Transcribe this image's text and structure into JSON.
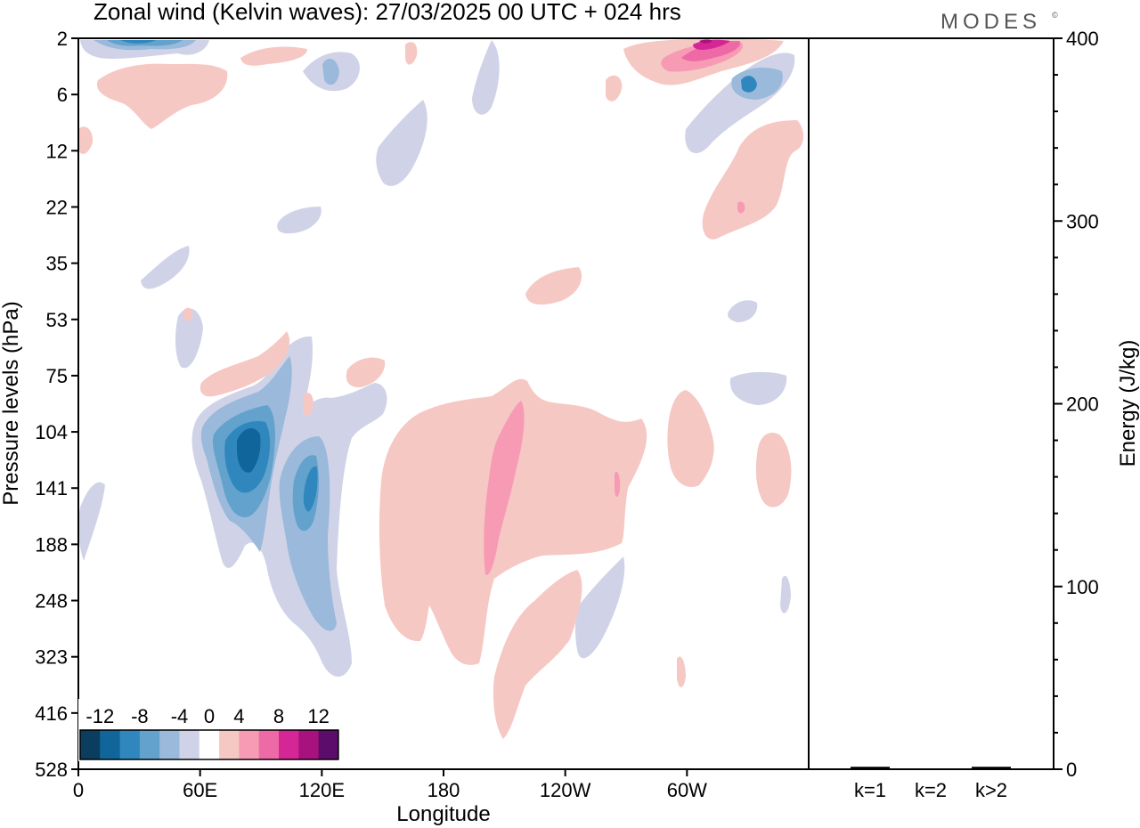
{
  "title": "Zonal wind (Kelvin waves):  27/03/2025  00 UTC  + 024 hrs",
  "brand": "MODES",
  "brand_mark": "©",
  "chart_data": [
    {
      "type": "heatmap",
      "title": "Zonal wind (Kelvin waves):  27/03/2025  00 UTC  + 024 hrs",
      "xlabel": "Longitude",
      "ylabel": "Pressure levels (hPa)",
      "x_ticks": [
        "0",
        "60E",
        "120E",
        "180",
        "120W",
        "60W"
      ],
      "x_tick_degrees": [
        0,
        60,
        120,
        180,
        240,
        300
      ],
      "xlim": [
        0,
        360
      ],
      "y_ticks": [
        "2",
        "6",
        "12",
        "22",
        "35",
        "53",
        "75",
        "104",
        "141",
        "188",
        "248",
        "323",
        "416",
        "528"
      ],
      "y_scale": "pressure levels (top 2 hPa, bottom 528 hPa)",
      "colorbar": {
        "tick_labels": [
          "-12",
          "-8",
          "-4",
          "0",
          "4",
          "8",
          "12"
        ],
        "levels": [
          -14,
          -12,
          -10,
          -8,
          -6,
          -4,
          -2,
          2,
          4,
          6,
          8,
          10,
          12,
          14
        ],
        "colors": [
          "#0b3d5e",
          "#10669a",
          "#2f87be",
          "#62a2cc",
          "#9ab9db",
          "#d0d3e7",
          "#ffffff",
          "#f6c8c4",
          "#f79bb5",
          "#ee6aa6",
          "#d42694",
          "#a8127e",
          "#5c0c6a"
        ]
      },
      "regions": [
        {
          "sign": "negative",
          "longitude": "70E-90E",
          "pressure": "104-188 hPa",
          "min": -12
        },
        {
          "sign": "negative",
          "longitude": "100E-120E",
          "pressure": "104-323 hPa",
          "min": -10
        },
        {
          "sign": "positive",
          "longitude": "150E-270E",
          "pressure": "75-323 hPa",
          "max": 6
        },
        {
          "sign": "positive",
          "longitude": "60W-40W",
          "pressure": "2-6 hPa",
          "max": 10
        },
        {
          "sign": "negative",
          "longitude": "60W-20W",
          "pressure": "2-12 hPa",
          "min": -8
        }
      ],
      "grid": false
    },
    {
      "type": "bar",
      "ylabel": "Energy (J/kg)",
      "categories": [
        "k=1",
        "k=2",
        "k>2"
      ],
      "values": [
        1,
        0,
        1
      ],
      "ylim": [
        0,
        400
      ],
      "y_ticks": [
        "0",
        "100",
        "200",
        "300",
        "400"
      ]
    }
  ]
}
